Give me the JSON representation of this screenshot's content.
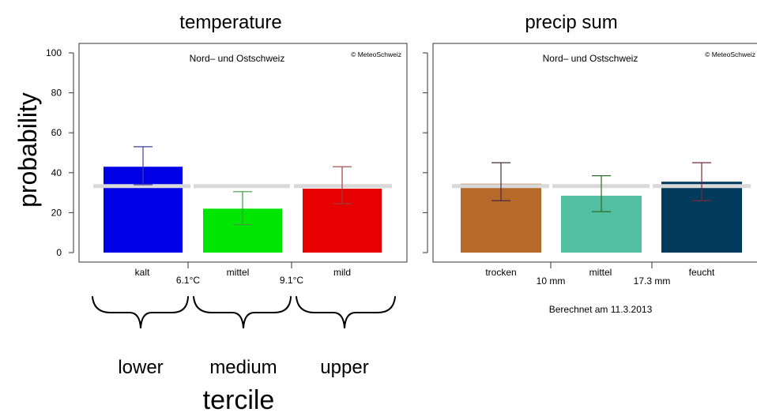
{
  "chart_data": [
    {
      "type": "bar",
      "title": "temperature",
      "subtitle": "Nord– und Ostschweiz",
      "credit": "© MeteoSchweiz",
      "ylabel": "probability",
      "ylim": [
        0,
        100
      ],
      "yticks": [
        0,
        20,
        40,
        60,
        80,
        100
      ],
      "categories": [
        "kalt",
        "mittel",
        "mild"
      ],
      "values": [
        43,
        22,
        32
      ],
      "error_low": [
        34,
        14,
        24.5
      ],
      "error_high": [
        53,
        30.5,
        43
      ],
      "colors": [
        "#0000e6",
        "#00e600",
        "#e60000"
      ],
      "error_colors": [
        "#3f3f99",
        "#3f993f",
        "#993f3f"
      ],
      "reference": 33.3,
      "reference_color": "#d9d9d9",
      "boundaries": [
        "6.1°C",
        "9.1°C"
      ]
    },
    {
      "type": "bar",
      "title": "precip sum",
      "subtitle": "Nord– und Ostschweiz",
      "credit": "© MeteoSchweiz",
      "ylim": [
        0,
        100
      ],
      "yticks": [
        0,
        20,
        40,
        60,
        80,
        100
      ],
      "categories": [
        "trocken",
        "mittel",
        "feucht"
      ],
      "values": [
        34.5,
        28.5,
        35.5
      ],
      "error_low": [
        26,
        20.5,
        26
      ],
      "error_high": [
        45,
        38.5,
        45
      ],
      "colors": [
        "#b56a2a",
        "#52bfa0",
        "#003a5c"
      ],
      "error_colors": [
        "#4a2a3f",
        "#2a6b2a",
        "#7a2a3a"
      ],
      "reference": 33.3,
      "reference_color": "#d9d9d9",
      "boundaries": [
        "10 mm",
        "17.3 mm"
      ],
      "footnote": "Berechnet am 11.3.2013"
    }
  ],
  "annotations": {
    "tercile_labels": [
      "lower",
      "medium",
      "upper"
    ],
    "tercile_caption": "tercile"
  }
}
